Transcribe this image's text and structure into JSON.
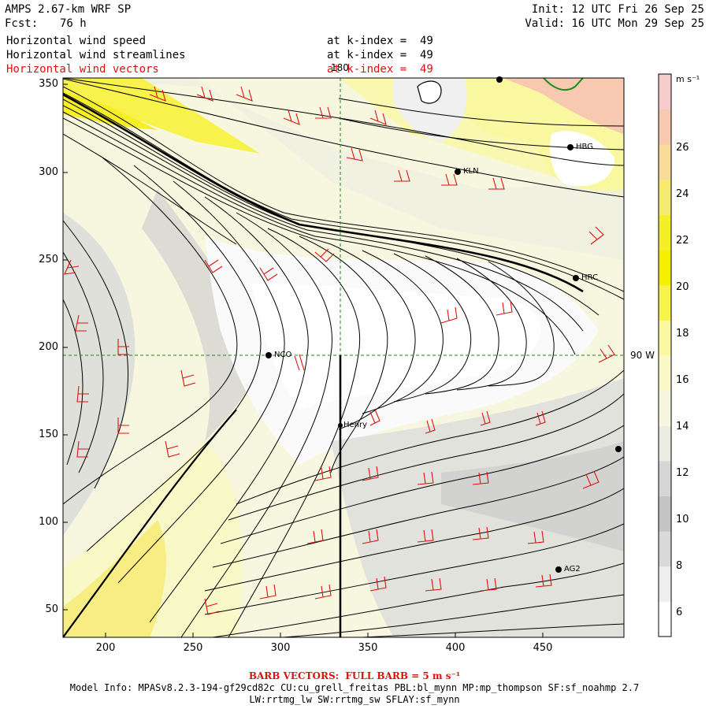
{
  "header": {
    "title": "AMPS 2.67-km WRF SP",
    "forecast_label": "Fcst:",
    "forecast_value": "76 h",
    "init": "Init: 12 UTC Fri 26 Sep 25",
    "valid": "Valid: 16 UTC Mon 29 Sep 25",
    "fields": [
      {
        "name": "Horizontal wind speed",
        "level": "at k-index =  49",
        "color": "#000000"
      },
      {
        "name": "Horizontal wind streamlines",
        "level": "at k-index =  49",
        "color": "#000000"
      },
      {
        "name": "Horizontal wind vectors",
        "level": "at k-index =  49",
        "color": "#e01010"
      }
    ]
  },
  "map": {
    "y_ticks": [
      "350",
      "300",
      "250",
      "200",
      "150",
      "100",
      "50"
    ],
    "x_ticks": [
      "200",
      "250",
      "300",
      "350",
      "400",
      "450"
    ],
    "meridian_label": "180",
    "parallel_label": "90 W",
    "stations": [
      {
        "name": "NCO"
      },
      {
        "name": "Henry"
      },
      {
        "name": "KLN"
      },
      {
        "name": "HBG"
      },
      {
        "name": "HRC"
      },
      {
        "name": "AG2"
      },
      {
        "name": ""
      },
      {
        "name": ""
      }
    ]
  },
  "colorbar": {
    "unit": "m s⁻¹",
    "ticks": [
      "26",
      "24",
      "22",
      "20",
      "18",
      "16",
      "14",
      "12",
      "10",
      "8",
      "6"
    ],
    "colors": [
      "#ffffff",
      "#eeeeee",
      "#d9d9d9",
      "#c4c4c4",
      "#d6d6d6",
      "#ecece2",
      "#f7f7df",
      "#f9f9c8",
      "#f9f7a0",
      "#f7f24c",
      "#f5f000",
      "#f5ef28",
      "#f7ea70",
      "#f7dd99",
      "#f7c9b0",
      "#f7cccc"
    ]
  },
  "footer": {
    "barb": "BARB VECTORS:  FULL BARB = 5 m s⁻¹",
    "model_info": "Model Info: MPASv8.2.3-194-gf29cd82c CU:cu_grell_freitas PBL:bl_mynn MP:mp_thompson SF:sf_noahmp 2.7",
    "model_info_2": "LW:rrtmg_lw SW:rrtmg_sw SFLAY:sf_mynn"
  }
}
